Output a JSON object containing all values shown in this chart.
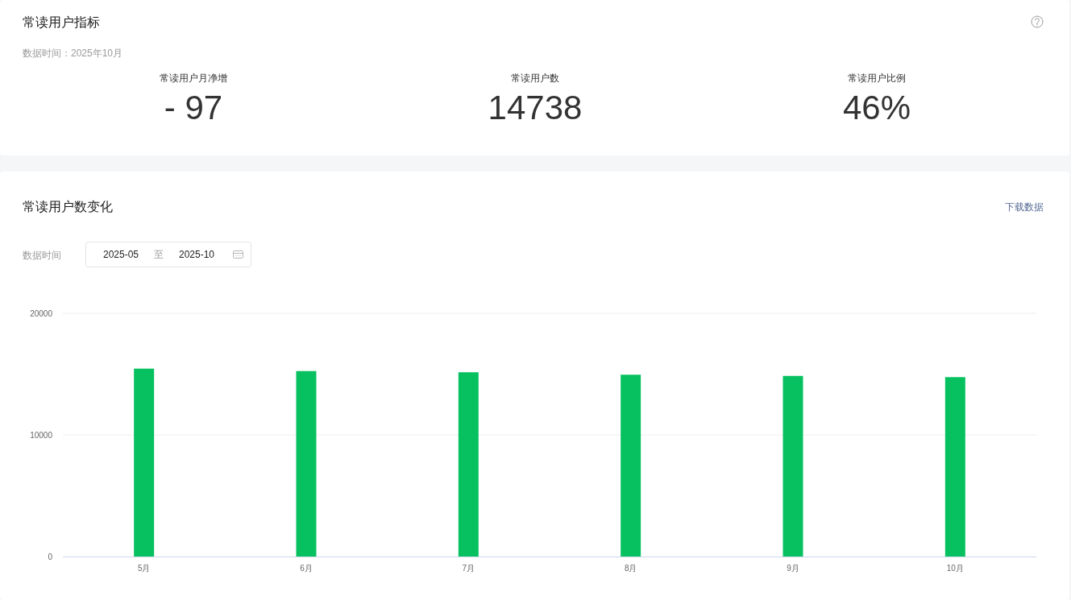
{
  "chart_data": [
    {
      "type": "other",
      "title": "常读用户指标",
      "subtitle": "数据时间：2025年10月",
      "annotations": [
        "常读用户月净增",
        "- 97",
        "常读用户数",
        "14738",
        "常读用户比例",
        "46%"
      ]
    },
    {
      "type": "bar",
      "title": "常读用户数变化",
      "annotations": [
        "下载数据",
        "数据时间",
        "2025-05",
        "至",
        "2025-10"
      ],
      "categories": [
        "5月",
        "6月",
        "7月",
        "8月",
        "9月",
        "10月"
      ],
      "series": [
        {
          "color": "#07c160",
          "values": [
            15450,
            15250,
            15150,
            14950,
            14850,
            14750
          ]
        }
      ],
      "ylim": [
        0,
        20000
      ],
      "yticks": [
        0,
        10000,
        20000
      ],
      "grid": "y"
    }
  ]
}
